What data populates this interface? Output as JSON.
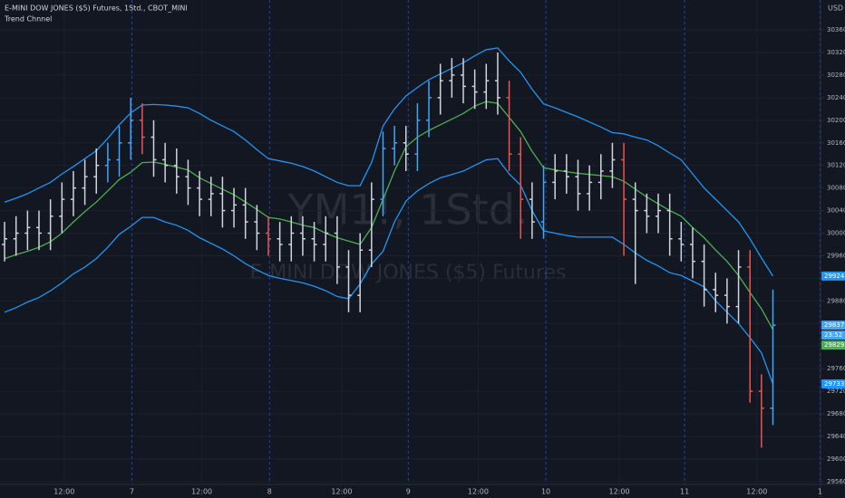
{
  "chart_data": {
    "type": "ohlc",
    "title": "E-MINI DOW JONES ($5) Futures, 1Std., CBOT_MINI",
    "indicator": "Trend Chnnel",
    "watermark": "YM1!, 1Std.",
    "watermark_subtitle": "E-MINI DOW JONES ($5) Futures",
    "currency": "USD",
    "countdown": "23:52",
    "open": [
      29980,
      29990,
      30000,
      30010,
      30000,
      30030,
      30060,
      30080,
      30100,
      30120,
      30130,
      30160,
      30200,
      30170,
      30130,
      30120,
      30100,
      30080,
      30060,
      30070,
      30040,
      30050,
      30020,
      30000,
      29990,
      29980,
      30000,
      29990,
      29980,
      30000,
      29940,
      29890,
      29970,
      30060,
      30150,
      30160,
      30140,
      30200,
      30240,
      30270,
      30280,
      30260,
      30250,
      30270,
      30240,
      30140,
      30060,
      30020,
      30090,
      30110,
      30100,
      30070,
      30090,
      30110,
      30130,
      30060,
      30040,
      30030,
      30040,
      29990,
      29980,
      29950,
      29900,
      29890,
      29870,
      29940,
      29720,
      29690
    ],
    "high": [
      30020,
      30030,
      30040,
      30040,
      30060,
      30090,
      30110,
      30130,
      30150,
      30160,
      30190,
      30240,
      30230,
      30200,
      30160,
      30150,
      30130,
      30110,
      30100,
      30100,
      30080,
      30080,
      30050,
      30030,
      30020,
      30030,
      30030,
      30020,
      30030,
      30030,
      29970,
      30000,
      30090,
      30180,
      30190,
      30190,
      30230,
      30270,
      30300,
      30310,
      30310,
      30290,
      30300,
      30320,
      30270,
      30170,
      30090,
      30120,
      30140,
      30140,
      30130,
      30120,
      30140,
      30160,
      30160,
      30090,
      30070,
      30070,
      30070,
      30020,
      30010,
      29980,
      29930,
      29920,
      29970,
      29970,
      29750,
      29900
    ],
    "low": [
      29950,
      29960,
      29970,
      29970,
      29970,
      30000,
      30030,
      30050,
      30070,
      30090,
      30100,
      30130,
      30140,
      30100,
      30090,
      30070,
      30050,
      30030,
      30030,
      30010,
      30010,
      29990,
      29970,
      29960,
      29950,
      29950,
      29960,
      29950,
      29950,
      29910,
      29860,
      29860,
      29940,
      30030,
      30120,
      30110,
      30110,
      30170,
      30210,
      30240,
      30230,
      30220,
      30220,
      30210,
      30110,
      29990,
      29990,
      29990,
      30060,
      30070,
      30040,
      30040,
      30060,
      30080,
      29960,
      29910,
      30000,
      30000,
      29960,
      29950,
      29920,
      29870,
      29860,
      29840,
      29840,
      29700,
      29620,
      29660
    ],
    "close": [
      29990,
      30000,
      30010,
      30000,
      30030,
      30060,
      30080,
      30100,
      30120,
      30130,
      30160,
      30200,
      30170,
      30130,
      30120,
      30100,
      30080,
      30060,
      30070,
      30040,
      30050,
      30020,
      30000,
      29990,
      29980,
      30000,
      29990,
      29980,
      30000,
      29940,
      29890,
      29970,
      30060,
      30150,
      30160,
      30140,
      30200,
      30240,
      30270,
      30280,
      30260,
      30250,
      30270,
      30240,
      30140,
      30060,
      30020,
      30090,
      30110,
      30100,
      30070,
      30090,
      30110,
      30130,
      30060,
      30040,
      30030,
      30040,
      29990,
      29980,
      29950,
      29900,
      29890,
      29870,
      29940,
      29720,
      29690,
      29837
    ],
    "colors": [
      "#d1d4dc",
      "#d1d4dc",
      "#d1d4dc",
      "#d1d4dc",
      "#d1d4dc",
      "#d1d4dc",
      "#d1d4dc",
      "#d1d4dc",
      "#d1d4dc",
      "#42a5f5",
      "#42a5f5",
      "#42a5f5",
      "#ef5350",
      "#d1d4dc",
      "#d1d4dc",
      "#d1d4dc",
      "#d1d4dc",
      "#d1d4dc",
      "#d1d4dc",
      "#d1d4dc",
      "#d1d4dc",
      "#d1d4dc",
      "#d1d4dc",
      "#ef5350",
      "#d1d4dc",
      "#d1d4dc",
      "#d1d4dc",
      "#d1d4dc",
      "#d1d4dc",
      "#d1d4dc",
      "#d1d4dc",
      "#d1d4dc",
      "#d1d4dc",
      "#42a5f5",
      "#42a5f5",
      "#d1d4dc",
      "#42a5f5",
      "#42a5f5",
      "#d1d4dc",
      "#d1d4dc",
      "#d1d4dc",
      "#d1d4dc",
      "#d1d4dc",
      "#d1d4dc",
      "#ef5350",
      "#ef5350",
      "#d1d4dc",
      "#42a5f5",
      "#d1d4dc",
      "#d1d4dc",
      "#d1d4dc",
      "#d1d4dc",
      "#d1d4dc",
      "#d1d4dc",
      "#ef5350",
      "#d1d4dc",
      "#d1d4dc",
      "#d1d4dc",
      "#d1d4dc",
      "#d1d4dc",
      "#d1d4dc",
      "#d1d4dc",
      "#d1d4dc",
      "#d1d4dc",
      "#d1d4dc",
      "#ef5350",
      "#ef5350",
      "#42a5f5"
    ],
    "series": [
      {
        "color": "#2196f3",
        "values": [
          30055,
          30062,
          30070,
          30080,
          30090,
          30105,
          30118,
          30132,
          30146,
          30168,
          30192,
          30213,
          30227,
          30228,
          30227,
          30225,
          30222,
          30212,
          30200,
          30190,
          30180,
          30165,
          30148,
          30132,
          30128,
          30124,
          30118,
          30110,
          30100,
          30090,
          30084,
          30084,
          30125,
          30190,
          30220,
          30243,
          30258,
          30272,
          30282,
          30292,
          30302,
          30314,
          30325,
          30328,
          30305,
          30285,
          30255,
          30229,
          30222,
          30214,
          30206,
          30197,
          30188,
          30178,
          30176,
          30170,
          30165,
          30155,
          30142,
          30130,
          30105,
          30080,
          30060,
          30040,
          30020,
          29990,
          29956,
          29924
        ]
      },
      {
        "color": "#4caf50",
        "values": [
          29955,
          29962,
          29968,
          29975,
          29985,
          30000,
          30020,
          30038,
          30055,
          30075,
          30095,
          30108,
          30125,
          30126,
          30122,
          30117,
          30112,
          30098,
          30088,
          30078,
          30068,
          30055,
          30042,
          30028,
          30025,
          30020,
          30014,
          30010,
          30000,
          29992,
          29986,
          29980,
          30010,
          30060,
          30110,
          30153,
          30170,
          30182,
          30192,
          30202,
          30212,
          30225,
          30233,
          30230,
          30205,
          30180,
          30145,
          30116,
          30112,
          30109,
          30106,
          30104,
          30102,
          30100,
          30092,
          30078,
          30064,
          30052,
          30040,
          30030,
          30010,
          29992,
          29970,
          29950,
          29925,
          29895,
          29866,
          29829
        ]
      },
      {
        "color": "#2196f3",
        "values": [
          29860,
          29868,
          29878,
          29886,
          29898,
          29912,
          29928,
          29940,
          29955,
          29975,
          29998,
          30012,
          30028,
          30028,
          30020,
          30014,
          30005,
          29992,
          29982,
          29972,
          29960,
          29946,
          29935,
          29925,
          29920,
          29916,
          29912,
          29906,
          29898,
          29888,
          29884,
          29910,
          29945,
          29968,
          30020,
          30057,
          30075,
          30088,
          30098,
          30104,
          30110,
          30120,
          30130,
          30132,
          30105,
          30085,
          30040,
          30004,
          30000,
          29996,
          29993,
          29993,
          29993,
          29993,
          29980,
          29965,
          29952,
          29942,
          29930,
          29925,
          29915,
          29905,
          29880,
          29860,
          29840,
          29815,
          29788,
          29733
        ]
      }
    ],
    "xlim": [
      -0.4,
      71.15
    ],
    "xticks": [
      {
        "value": 5.2,
        "label": "12:00"
      },
      {
        "value": 11.1,
        "label": "7"
      },
      {
        "value": 17.2,
        "label": "12:00"
      },
      {
        "value": 23.1,
        "label": "8"
      },
      {
        "value": 29.4,
        "label": "12:00"
      },
      {
        "value": 35.2,
        "label": "9"
      },
      {
        "value": 41.3,
        "label": "12:00"
      },
      {
        "value": 47.2,
        "label": "10"
      },
      {
        "value": 53.6,
        "label": "12:00"
      },
      {
        "value": 59.3,
        "label": "11"
      },
      {
        "value": 65.6,
        "label": "12:00"
      },
      {
        "value": 71.1,
        "label": "1"
      }
    ],
    "ylim": [
      29555,
      30413
    ],
    "yticks": [
      29560,
      29600,
      29640,
      29680,
      29720,
      29760,
      29800,
      29840,
      29880,
      29920,
      29960,
      30000,
      30040,
      30080,
      30120,
      30160,
      30200,
      30240,
      30280,
      30320,
      30360
    ],
    "grid": true
  }
}
